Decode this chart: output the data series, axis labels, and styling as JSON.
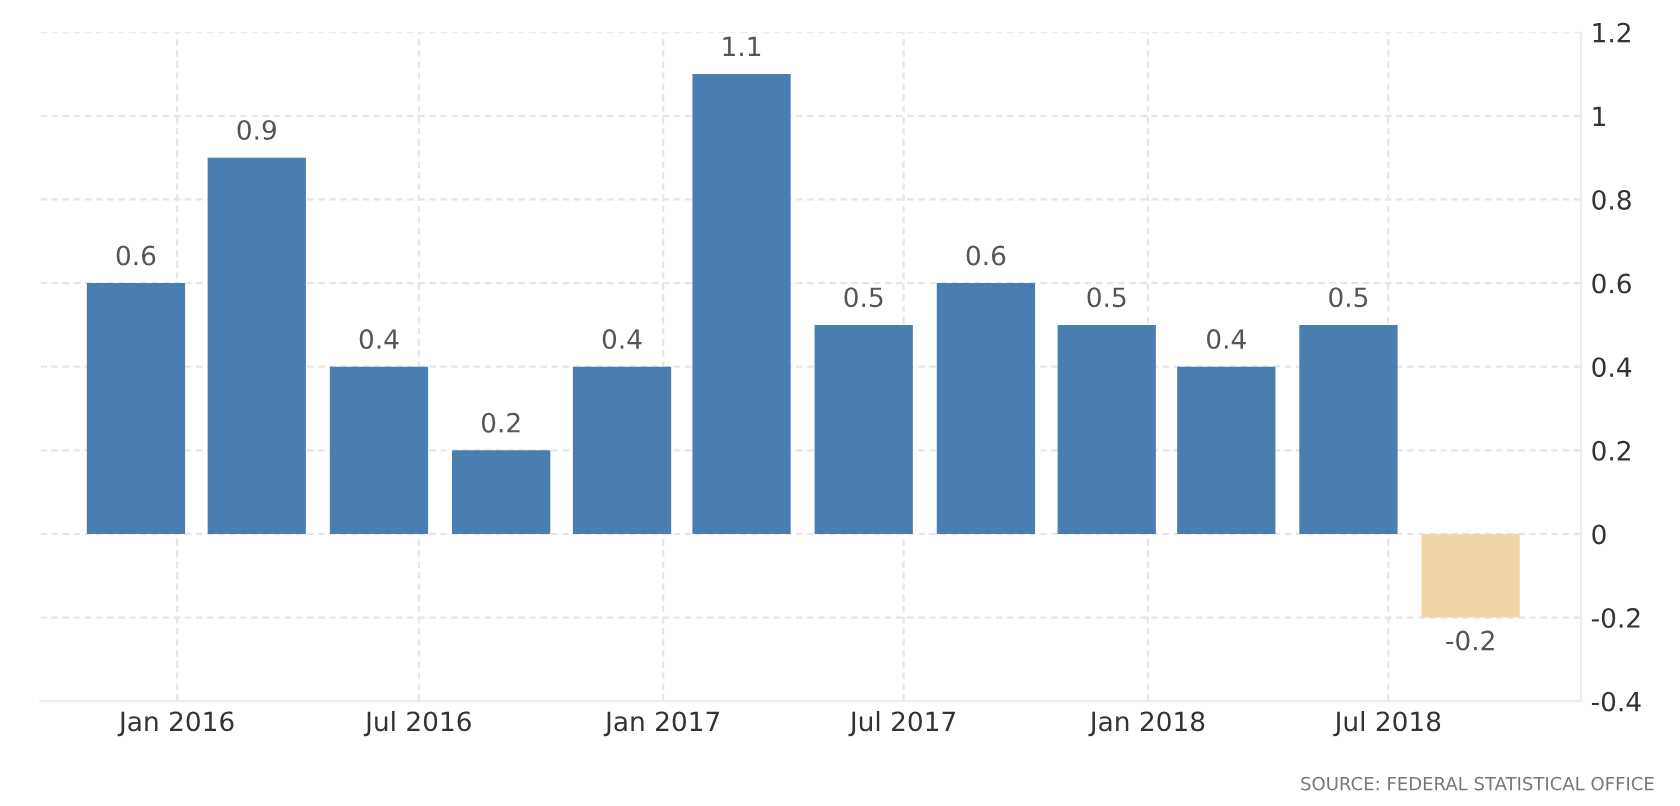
{
  "chart_data": {
    "type": "bar",
    "x": [
      "2015-12",
      "2016-03",
      "2016-06",
      "2016-09",
      "2016-12",
      "2017-03",
      "2017-06",
      "2017-09",
      "2017-12",
      "2018-03",
      "2018-06",
      "2018-09"
    ],
    "values": [
      0.6,
      0.9,
      0.4,
      0.2,
      0.4,
      1.1,
      0.5,
      0.6,
      0.5,
      0.4,
      0.5,
      -0.2
    ],
    "colors": [
      "#4a7eb0",
      "#4a7eb0",
      "#4a7eb0",
      "#4a7eb0",
      "#4a7eb0",
      "#4a7eb0",
      "#4a7eb0",
      "#4a7eb0",
      "#4a7eb0",
      "#4a7eb0",
      "#4a7eb0",
      "#f1d5a6"
    ],
    "data_labels": true,
    "xlim": [
      "2015-09-20",
      "2018-11-23"
    ],
    "xticks": [
      {
        "value": "2016-01",
        "label": "Jan 2016"
      },
      {
        "value": "2016-07",
        "label": "Jul 2016"
      },
      {
        "value": "2017-01",
        "label": "Jan 2017"
      },
      {
        "value": "2017-07",
        "label": "Jul 2017"
      },
      {
        "value": "2018-01",
        "label": "Jan 2018"
      },
      {
        "value": "2018-07",
        "label": "Jul 2018"
      }
    ],
    "ylim": [
      -0.4,
      1.2
    ],
    "yticks": [
      -0.4,
      -0.2,
      0,
      0.2,
      0.4,
      0.6,
      0.8,
      1,
      1.2
    ],
    "grid": true,
    "legend": false,
    "annotations": [
      "SOURCE: FEDERAL STATISTICAL OFFICE"
    ]
  }
}
